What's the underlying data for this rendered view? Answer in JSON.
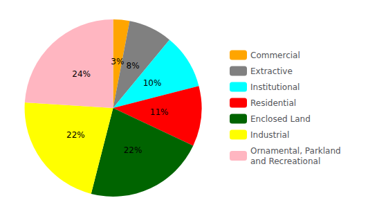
{
  "chart_data": {
    "type": "pie",
    "categories": [
      "Commercial",
      "Extractive",
      "Institutional",
      "Residential",
      "Enclosed Land",
      "Industrial",
      "Ornamental, Parkland\nand Recreational"
    ],
    "values": [
      3,
      8,
      10,
      11,
      22,
      22,
      24
    ],
    "value_labels": [
      "3%",
      "8%",
      "10%",
      "11%",
      "22%",
      "22%",
      "24%"
    ],
    "colors": [
      "#FFA500",
      "#808080",
      "#00FFFF",
      "#FF0000",
      "#006400",
      "#FFFF00",
      "#FFB6C1"
    ],
    "data_labels": true,
    "legend": "right"
  }
}
